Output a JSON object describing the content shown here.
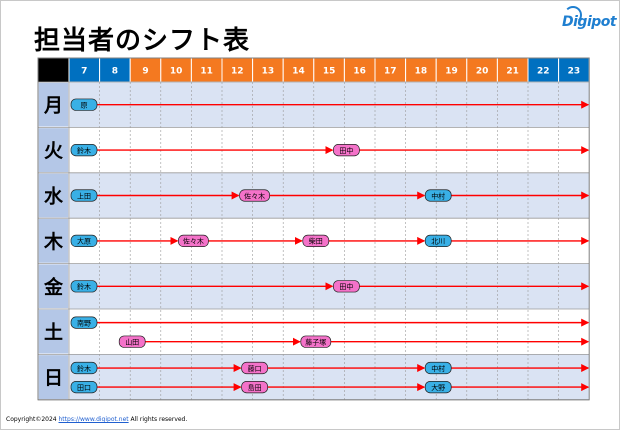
{
  "title": "担当者のシフト表",
  "logo": {
    "text": "Digipot"
  },
  "hours": [
    {
      "label": "7",
      "shift": "day"
    },
    {
      "label": "8",
      "shift": "day"
    },
    {
      "label": "9",
      "shift": "mid"
    },
    {
      "label": "10",
      "shift": "mid"
    },
    {
      "label": "11",
      "shift": "mid"
    },
    {
      "label": "12",
      "shift": "mid"
    },
    {
      "label": "13",
      "shift": "mid"
    },
    {
      "label": "14",
      "shift": "mid"
    },
    {
      "label": "15",
      "shift": "mid"
    },
    {
      "label": "16",
      "shift": "mid"
    },
    {
      "label": "17",
      "shift": "mid"
    },
    {
      "label": "18",
      "shift": "mid"
    },
    {
      "label": "19",
      "shift": "mid"
    },
    {
      "label": "20",
      "shift": "mid"
    },
    {
      "label": "21",
      "shift": "mid"
    },
    {
      "label": "22",
      "shift": "night"
    },
    {
      "label": "23",
      "shift": "night"
    }
  ],
  "colors": {
    "header_blue": "#0070c0",
    "header_orange": "#f47920",
    "header_corner": "#000000",
    "day_col": "#b4c7e7",
    "row_band": "#dae3f3",
    "arrow": "#ff0000",
    "tag_blue": "#39b0e6",
    "tag_pink": "#f472c9"
  },
  "days": [
    {
      "label": "月",
      "lanes": [
        [
          {
            "name": "原",
            "start": 7,
            "color": "blue"
          }
        ]
      ]
    },
    {
      "label": "火",
      "lanes": [
        [
          {
            "name": "鈴木",
            "start": 7,
            "color": "blue"
          },
          {
            "name": "田中",
            "start": 16,
            "color": "pink"
          }
        ]
      ]
    },
    {
      "label": "水",
      "lanes": [
        [
          {
            "name": "上田",
            "start": 7,
            "color": "blue"
          },
          {
            "name": "佐々木",
            "start": 13,
            "color": "pink"
          },
          {
            "name": "中村",
            "start": 19,
            "color": "blue"
          }
        ]
      ]
    },
    {
      "label": "木",
      "lanes": [
        [
          {
            "name": "大原",
            "start": 7,
            "color": "blue"
          },
          {
            "name": "佐々木",
            "start": 11,
            "color": "pink"
          },
          {
            "name": "柴田",
            "start": 15,
            "color": "pink"
          },
          {
            "name": "北川",
            "start": 19,
            "color": "blue"
          }
        ]
      ]
    },
    {
      "label": "金",
      "lanes": [
        [
          {
            "name": "鈴木",
            "start": 7,
            "color": "blue"
          },
          {
            "name": "田中",
            "start": 16,
            "color": "pink"
          }
        ]
      ]
    },
    {
      "label": "土",
      "lanes": [
        [
          {
            "name": "南野",
            "start": 7,
            "color": "blue"
          }
        ],
        [
          {
            "name": "山田",
            "start": 9,
            "color": "pink"
          },
          {
            "name": "藤子塚",
            "start": 15,
            "color": "pink"
          }
        ]
      ]
    },
    {
      "label": "日",
      "lanes": [
        [
          {
            "name": "鈴木",
            "start": 7,
            "color": "blue"
          },
          {
            "name": "藤口",
            "start": 13,
            "color": "pink"
          },
          {
            "name": "中村",
            "start": 19,
            "color": "blue"
          }
        ],
        [
          {
            "name": "田口",
            "start": 7,
            "color": "blue"
          },
          {
            "name": "島田",
            "start": 13,
            "color": "pink"
          },
          {
            "name": "大野",
            "start": 19,
            "color": "blue"
          }
        ]
      ]
    }
  ],
  "copyright": {
    "prefix": "Copyright©2024 ",
    "url": "https://www.digipot.net",
    "suffix": " All rights reserved."
  }
}
